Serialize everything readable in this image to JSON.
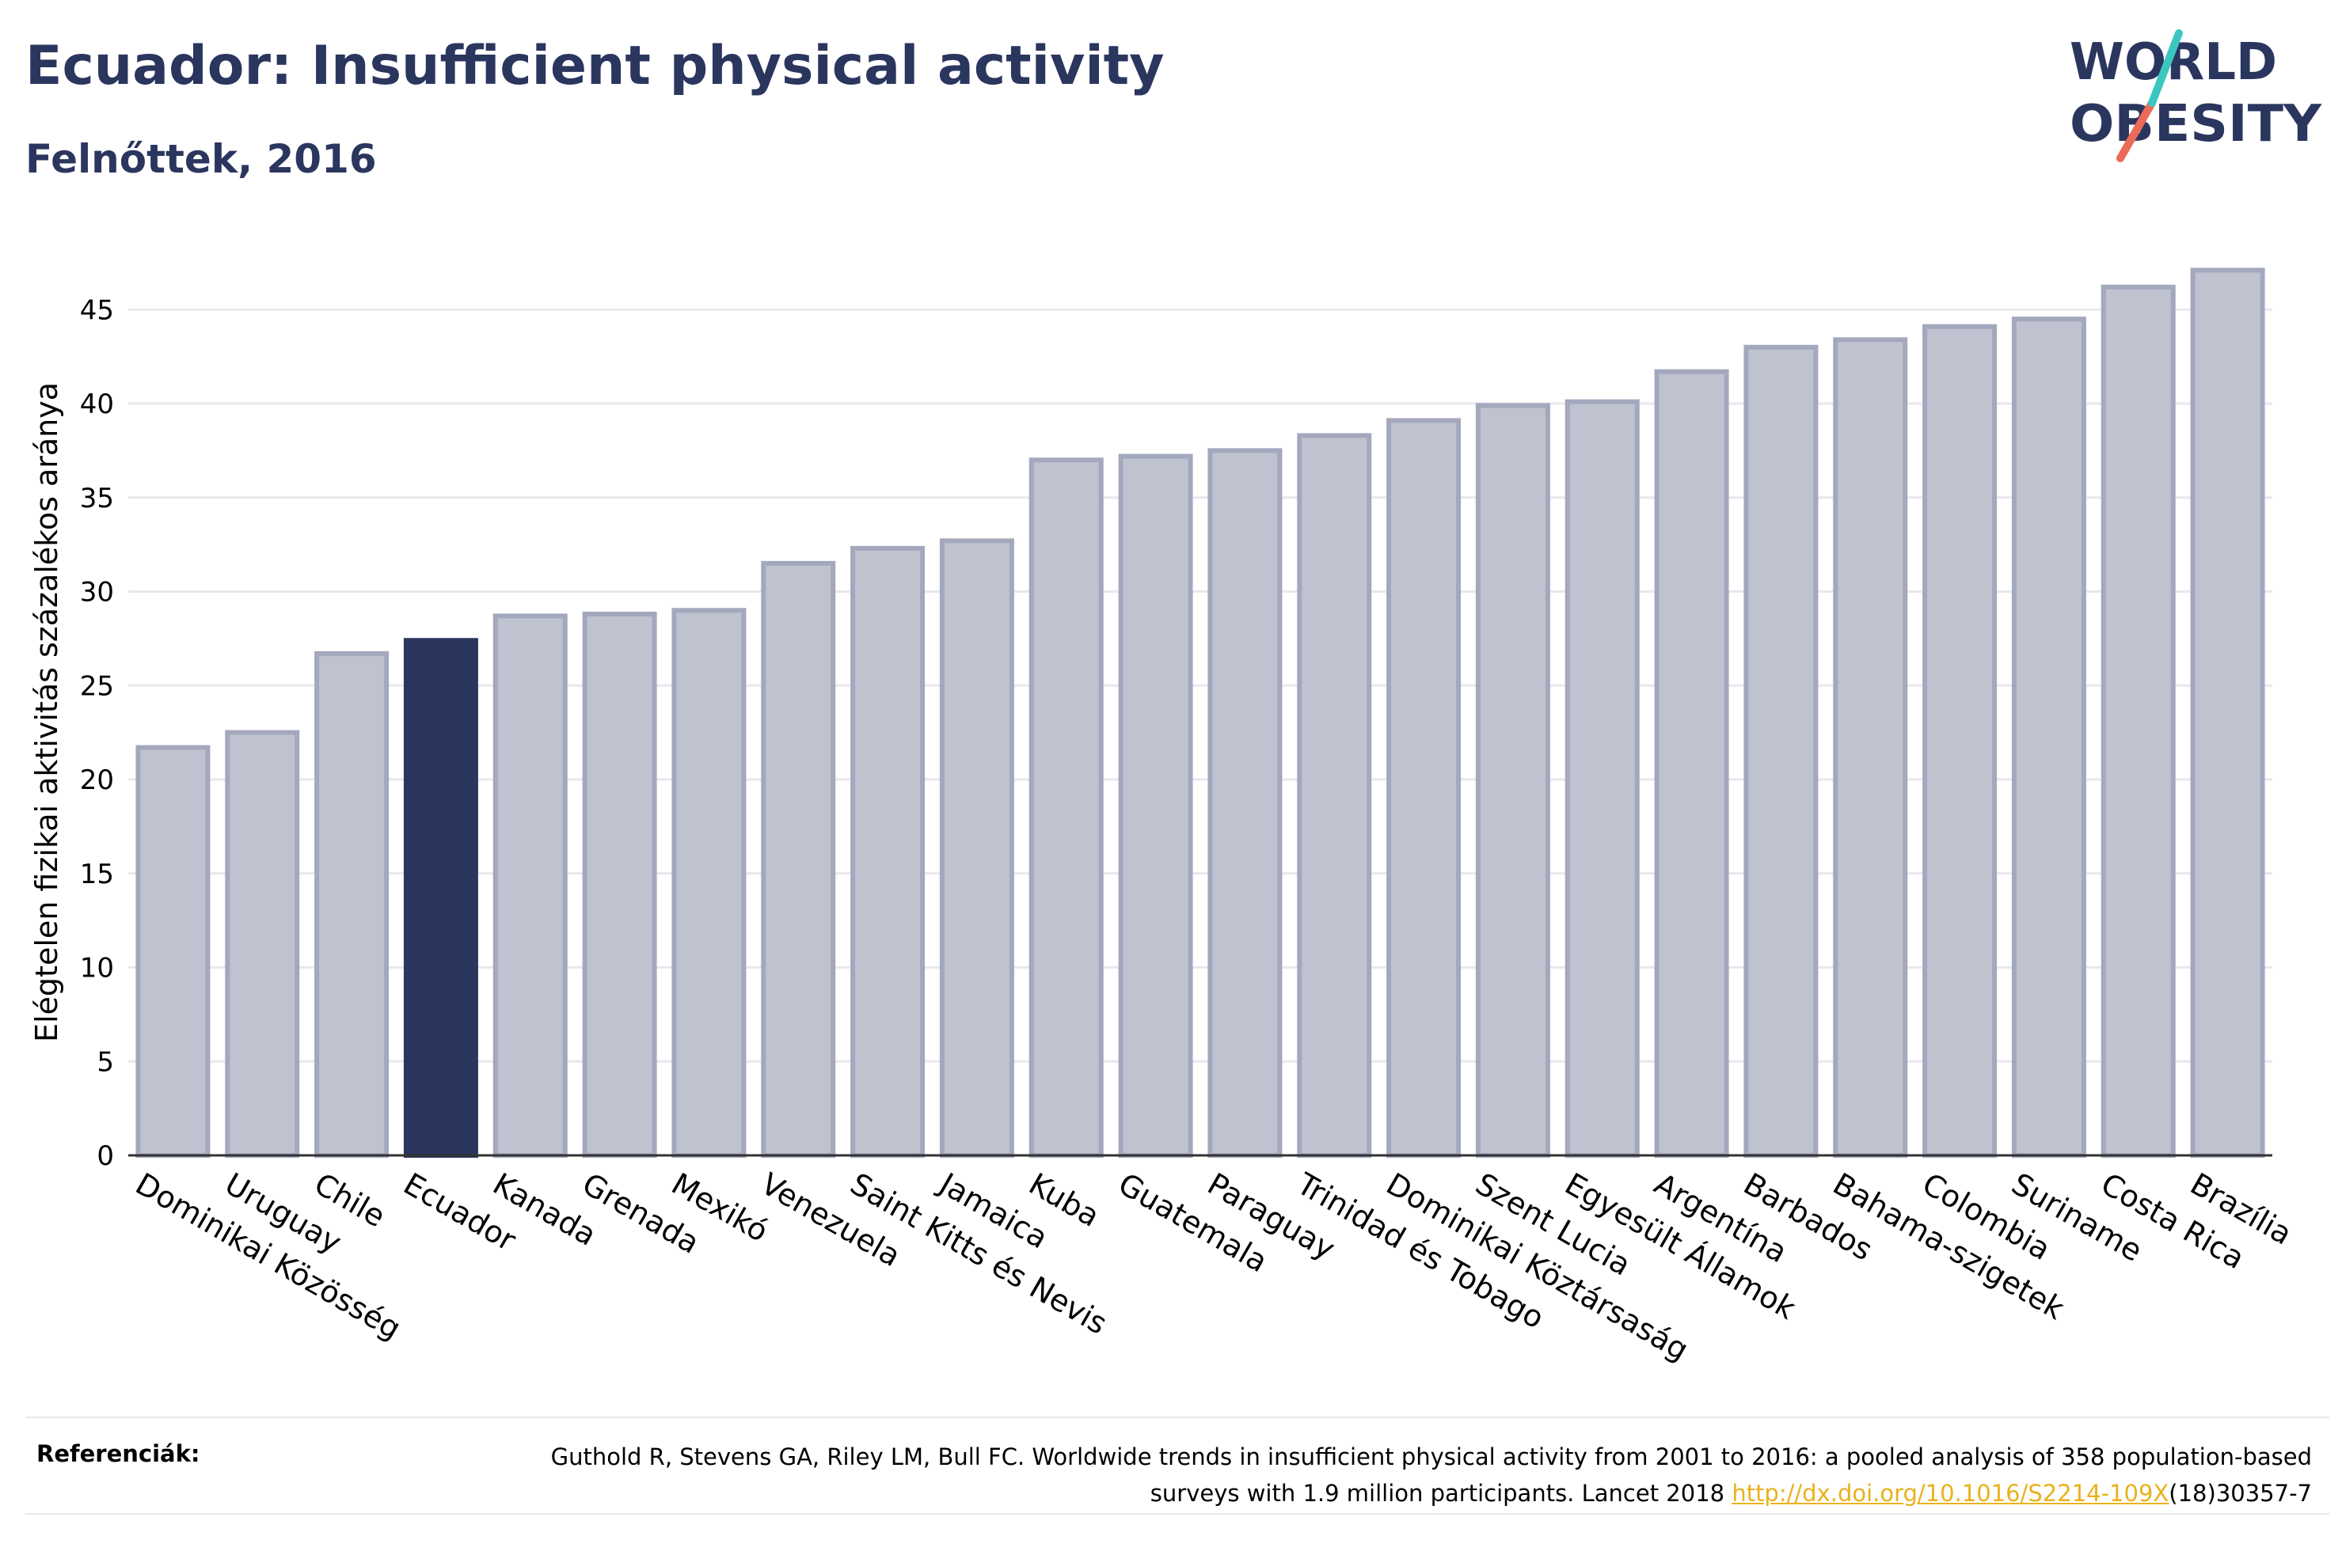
{
  "header": {
    "title": "Ecuador: Insufficient physical activity",
    "subtitle": "Felnőttek, 2016"
  },
  "logo": {
    "line1": "WORLD",
    "line2": "OBESITY",
    "colors": {
      "text": "#2b365f",
      "slash_teal": "#3cc6c0",
      "slash_coral": "#ec6b56"
    }
  },
  "colors": {
    "bar_fill": "#bfc2cf",
    "bar_stroke": "#a3a8bd",
    "highlight_fill": "#2b365f",
    "grid": "#e8e8ee",
    "axis": "#333333"
  },
  "chart_data": {
    "type": "bar",
    "title": "Ecuador: Insufficient physical activity",
    "subtitle": "Felnőttek, 2016",
    "xlabel": "",
    "ylabel": "Elégtelen fizikai aktivitás százalékos aránya",
    "ylim": [
      0,
      48
    ],
    "yticks": [
      0,
      5,
      10,
      15,
      20,
      25,
      30,
      35,
      40,
      45
    ],
    "grid": true,
    "highlight": "Ecuador",
    "categories": [
      "Dominikai Közösség",
      "Uruguay",
      "Chile",
      "Ecuador",
      "Kanada",
      "Grenada",
      "Mexikó",
      "Venezuela",
      "Saint Kitts és Nevis",
      "Jamaica",
      "Kuba",
      "Guatemala",
      "Paraguay",
      "Trinidad és Tobago",
      "Dominikai Köztársaság",
      "Szent Lucia",
      "Egyesült Államok",
      "Argentína",
      "Barbados",
      "Bahama-szigetek",
      "Colombia",
      "Suriname",
      "Costa Rica",
      "Brazília"
    ],
    "values": [
      21.7,
      22.5,
      26.7,
      27.4,
      28.7,
      28.8,
      29.0,
      31.5,
      32.3,
      32.7,
      37.0,
      37.2,
      37.5,
      38.3,
      39.1,
      39.9,
      40.1,
      41.7,
      43.0,
      43.4,
      44.1,
      44.5,
      46.2,
      47.1
    ]
  },
  "references": {
    "label": "Referenciák:",
    "text_before": "Guthold R, Stevens GA, Riley LM, Bull FC. Worldwide trends in insufficient physical activity from 2001 to 2016: a pooled analysis of 358 population-based surveys with 1.9 million participants. Lancet 2018 ",
    "link": "http://dx.doi.org/10.1016/S2214-109X",
    "text_after": "(18)30357-7"
  }
}
